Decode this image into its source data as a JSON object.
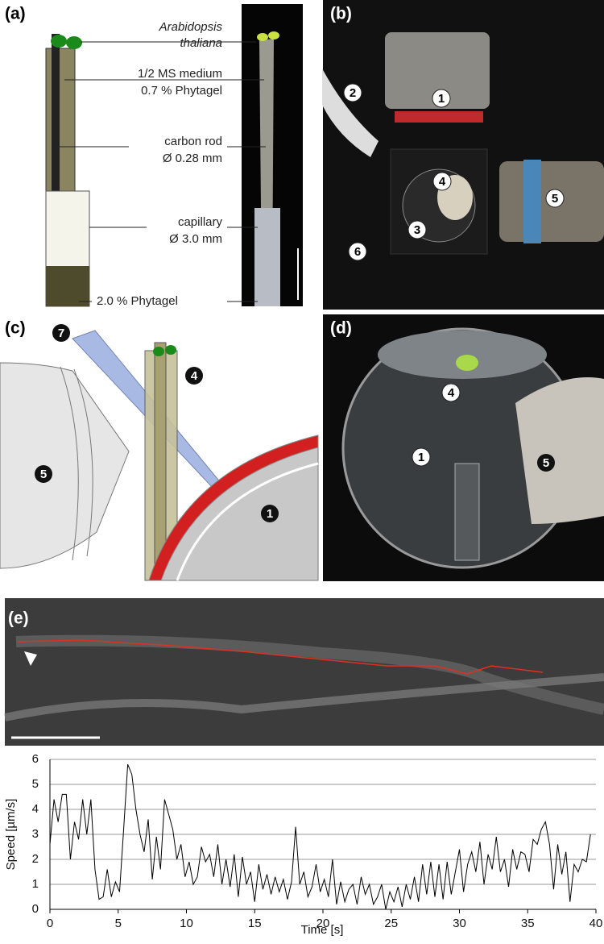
{
  "figure": {
    "panels": [
      "(a)",
      "(b)",
      "(c)",
      "(d)",
      "(e)"
    ],
    "panel_a": {
      "species": [
        "Arabidopsis",
        "thaliana"
      ],
      "medium": [
        "1/2 MS medium",
        "0.7 % Phytagel"
      ],
      "rod": [
        "carbon rod",
        "Ø 0.28 mm"
      ],
      "capillary": [
        "capillary",
        "Ø 3.0 mm"
      ],
      "gel": "2.0 % Phytagel"
    },
    "markers_b": [
      "1",
      "2",
      "4",
      "3",
      "5",
      "6"
    ],
    "markers_c": [
      "7",
      "4",
      "5",
      "1"
    ],
    "markers_d": [
      "4",
      "1",
      "5"
    ]
  },
  "chart_data": {
    "type": "line",
    "xlabel": "Time [s]",
    "ylabel": "Speed [µm/s]",
    "x": [
      0,
      0.3,
      0.6,
      0.9,
      1.2,
      1.5,
      1.8,
      2.1,
      2.4,
      2.7,
      3,
      3.3,
      3.6,
      3.9,
      4.2,
      4.5,
      4.8,
      5.1,
      5.4,
      5.7,
      6,
      6.3,
      6.6,
      6.9,
      7.2,
      7.5,
      7.8,
      8.1,
      8.4,
      8.7,
      9,
      9.3,
      9.6,
      9.9,
      10.2,
      10.5,
      10.8,
      11.1,
      11.4,
      11.7,
      12,
      12.3,
      12.6,
      12.9,
      13.2,
      13.5,
      13.8,
      14.1,
      14.4,
      14.7,
      15,
      15.3,
      15.6,
      15.9,
      16.2,
      16.5,
      16.8,
      17.1,
      17.4,
      17.7,
      18,
      18.3,
      18.6,
      18.9,
      19.2,
      19.5,
      19.8,
      20.1,
      20.4,
      20.7,
      21,
      21.3,
      21.6,
      21.9,
      22.2,
      22.5,
      22.8,
      23.1,
      23.4,
      23.7,
      24,
      24.3,
      24.6,
      24.9,
      25.2,
      25.5,
      25.8,
      26.1,
      26.4,
      26.7,
      27,
      27.3,
      27.6,
      27.9,
      28.2,
      28.5,
      28.8,
      29.1,
      29.4,
      29.7,
      30,
      30.3,
      30.6,
      30.9,
      31.2,
      31.5,
      31.8,
      32.1,
      32.4,
      32.7,
      33,
      33.3,
      33.6,
      33.9,
      34.2,
      34.5,
      34.8,
      35.1,
      35.4,
      35.7,
      36,
      36.3,
      36.6,
      36.9,
      37.2,
      37.5,
      37.8,
      38.1,
      38.4,
      38.7,
      39,
      39.3,
      39.6
    ],
    "series": [
      {
        "color": "#000000",
        "values": [
          2.6,
          4.4,
          3.5,
          4.6,
          4.6,
          2.0,
          3.5,
          2.8,
          4.4,
          3.0,
          4.4,
          1.6,
          0.4,
          0.5,
          1.6,
          0.5,
          1.1,
          0.7,
          3.2,
          5.8,
          5.4,
          4.0,
          3.0,
          2.3,
          3.6,
          1.2,
          2.9,
          1.6,
          4.4,
          3.8,
          3.2,
          2.0,
          2.6,
          1.3,
          1.9,
          1.0,
          1.3,
          2.5,
          1.9,
          2.2,
          1.3,
          2.6,
          1.0,
          2.0,
          0.9,
          2.2,
          0.5,
          2.1,
          1.0,
          1.5,
          0.3,
          1.8,
          0.8,
          1.4,
          0.6,
          1.3,
          0.7,
          1.2,
          0.4,
          1.1,
          3.3,
          1.0,
          1.5,
          0.5,
          0.9,
          1.8,
          0.7,
          1.2,
          0.5,
          2.0,
          0.2,
          1.1,
          0.3,
          0.8,
          1.0,
          0.2,
          1.3,
          0.6,
          1.0,
          0.2,
          0.5,
          1.0,
          0,
          0.7,
          0.3,
          0.9,
          0.1,
          1.0,
          0.4,
          1.3,
          0.3,
          1.8,
          0.6,
          1.9,
          0.5,
          1.8,
          0.4,
          1.9,
          0.6,
          1.5,
          2.4,
          0.7,
          1.8,
          2.3,
          1.5,
          2.7,
          1.0,
          2.2,
          1.6,
          2.9,
          1.5,
          2.0,
          0.9,
          2.4,
          1.6,
          2.3,
          2.2,
          1.5,
          2.8,
          2.6,
          3.2,
          3.5,
          2.6,
          0.8,
          2.6,
          1.4,
          2.3,
          0.3,
          1.8,
          1.5,
          2.0,
          1.9,
          3.0
        ]
      }
    ],
    "xlim": [
      0,
      40
    ],
    "xticks": [
      0,
      5,
      10,
      15,
      20,
      25,
      30,
      35,
      40
    ],
    "ylim": [
      0,
      6
    ],
    "yticks": [
      0,
      1,
      2,
      3,
      4,
      5,
      6
    ],
    "grid": true
  }
}
